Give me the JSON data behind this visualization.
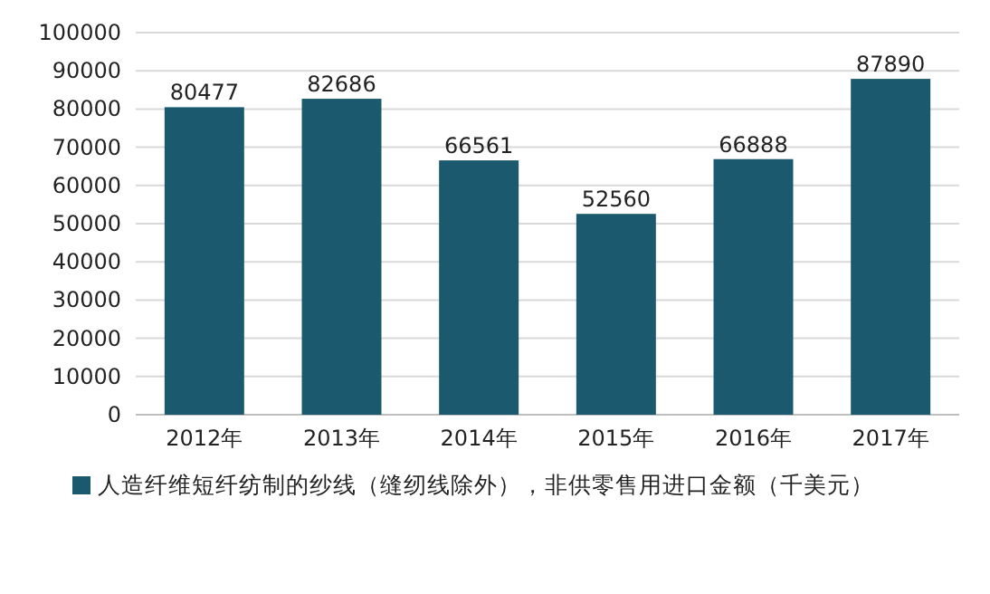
{
  "chart_data": {
    "type": "bar",
    "categories": [
      "2012年",
      "2013年",
      "2014年",
      "2015年",
      "2016年",
      "2017年"
    ],
    "series": [
      {
        "name": "人造纤维短纤纺制的纱线（缝纫线除外），非供零售用进口金额（千美元）",
        "color": "#1b5a6e",
        "values": [
          80477,
          82686,
          66561,
          52560,
          66888,
          87890
        ]
      }
    ],
    "ylim": [
      0,
      100000
    ],
    "yticks": [
      0,
      10000,
      20000,
      30000,
      40000,
      50000,
      60000,
      70000,
      80000,
      90000,
      100000
    ],
    "grid": "y",
    "legend": "bottom",
    "data_labels": true
  }
}
